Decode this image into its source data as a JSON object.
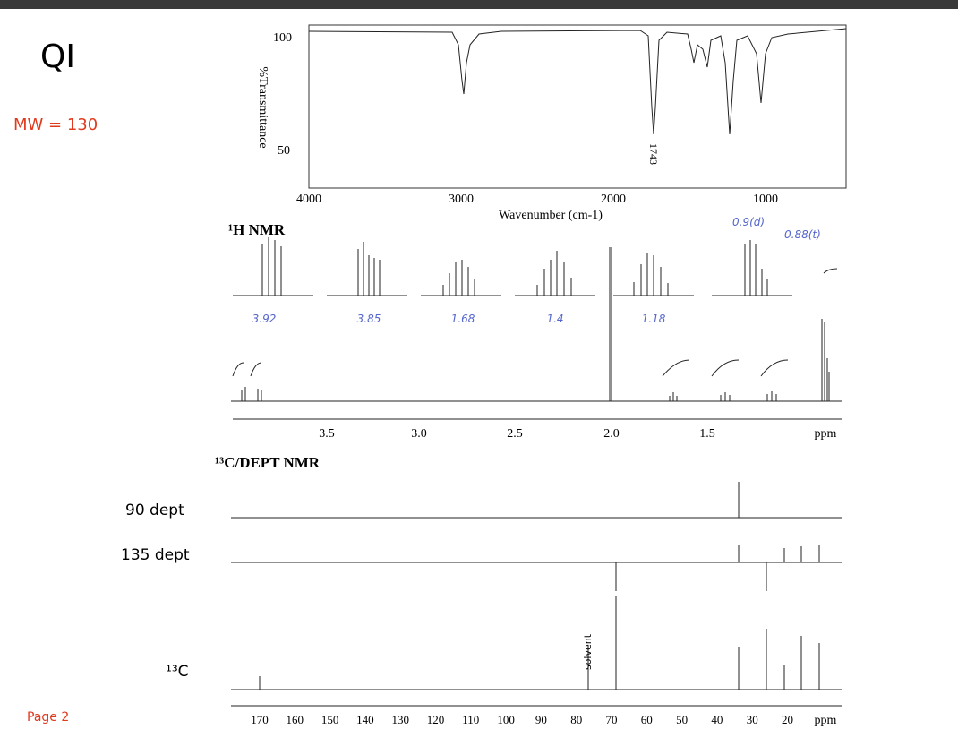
{
  "header": {
    "title": "QI",
    "mw": "MW = 130"
  },
  "ir": {
    "ylabel": "%Transmittance",
    "yticks": [
      "100",
      "50"
    ],
    "xticks": [
      "4000",
      "3000",
      "2000",
      "1000"
    ],
    "xlabel": "Wavenumber (cm-1)",
    "annotation": "1743"
  },
  "hnmr": {
    "title": "¹H NMR",
    "inset_labels": [
      "3.92",
      "3.85",
      "1.68",
      "1.4",
      "1.18"
    ],
    "notes": [
      "0.9(d)",
      "0.88(t)"
    ],
    "xticks": [
      "3.5",
      "3.0",
      "2.5",
      "2.0",
      "1.5"
    ],
    "unit": "ppm"
  },
  "cnmr": {
    "title": "¹³C/DEPT NMR",
    "rows": [
      "90 dept",
      "135 dept",
      "¹³C"
    ],
    "solvent": "solvent",
    "xticks": [
      "170",
      "160",
      "150",
      "140",
      "130",
      "120",
      "110",
      "100",
      "90",
      "80",
      "70",
      "60",
      "50",
      "40",
      "30",
      "20"
    ],
    "unit": "ppm"
  },
  "footer": {
    "page": "Page 2"
  }
}
